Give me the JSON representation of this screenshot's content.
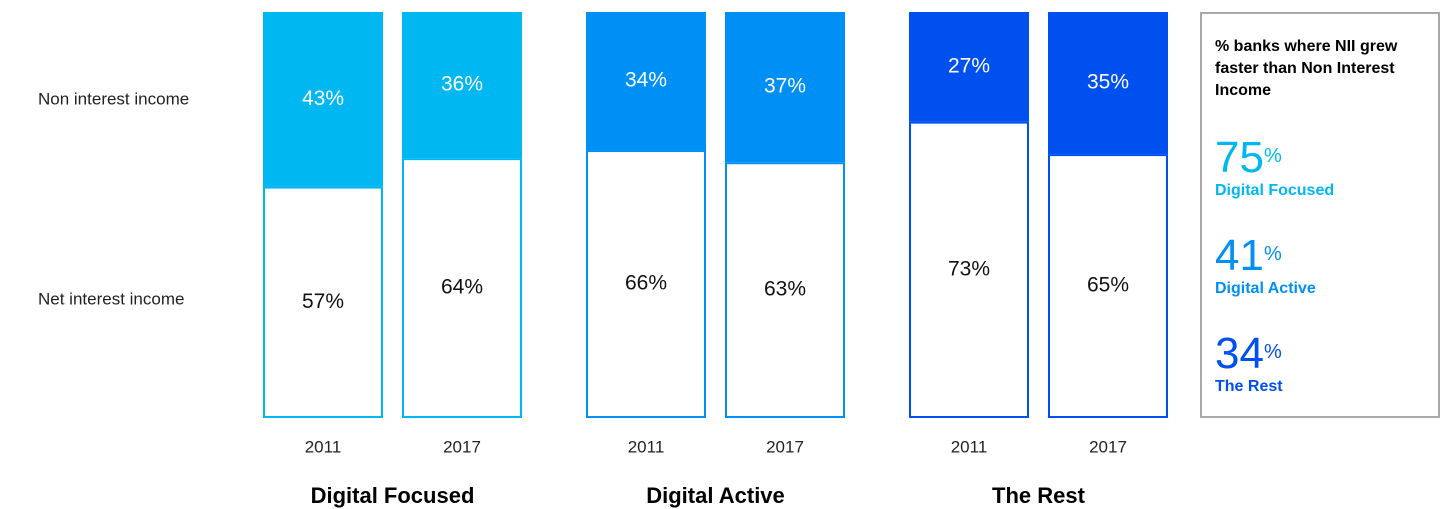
{
  "chart_data": {
    "type": "bar",
    "stacked": true,
    "categories": [
      "2011",
      "2017",
      "2011",
      "2017",
      "2011",
      "2017"
    ],
    "groups": [
      "Digital Focused",
      "Digital Active",
      "The Rest"
    ],
    "group_colors": [
      "#00b7f1",
      "#0090f5",
      "#0050f0"
    ],
    "ylim": [
      0,
      100
    ],
    "series": [
      {
        "name": "Net interest income",
        "values": [
          57,
          64,
          66,
          63,
          73,
          65
        ],
        "value_labels": [
          "57%",
          "64%",
          "66%",
          "63%",
          "73%",
          "65%"
        ]
      },
      {
        "name": "Non interest income",
        "values": [
          43,
          36,
          34,
          37,
          27,
          35
        ],
        "value_labels": [
          "43%",
          "36%",
          "34%",
          "37%",
          "27%",
          "35%"
        ]
      }
    ]
  },
  "panel": {
    "title": "% banks where NII grew faster than Non Interest Income",
    "unit": "%",
    "items": [
      {
        "value": 75,
        "label": "Digital Focused",
        "color": "#00b7f1"
      },
      {
        "value": 41,
        "label": "Digital Active",
        "color": "#0090f5"
      },
      {
        "value": 34,
        "label": "The Rest",
        "color": "#0050f0"
      }
    ]
  }
}
